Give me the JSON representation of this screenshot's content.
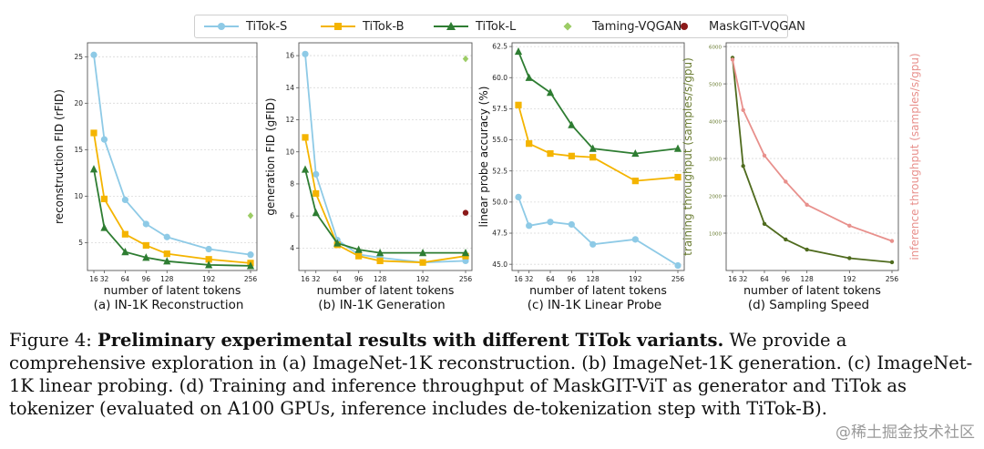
{
  "legend": [
    {
      "name": "TiTok-S",
      "color": "#8ecae6",
      "marker": "circle"
    },
    {
      "name": "TiTok-B",
      "color": "#f4b400",
      "marker": "square"
    },
    {
      "name": "TiTok-L",
      "color": "#2e7d32",
      "marker": "triangle"
    },
    {
      "name": "Taming-VQGAN",
      "color": "#9ccc65",
      "marker": "diamond"
    },
    {
      "name": "MaskGIT-VQGAN",
      "color": "#8b1a1a",
      "marker": "dot"
    }
  ],
  "chart_data": [
    {
      "type": "line",
      "title": "(a) IN-1K Reconstruction",
      "xlabel": "number of latent tokens",
      "ylabel": "reconstruction FID (rFID)",
      "x": [
        16,
        32,
        64,
        96,
        128,
        192,
        256
      ],
      "xticks": [
        "16",
        "32",
        "64",
        "96",
        "128",
        "192",
        "256"
      ],
      "ylim": [
        2,
        26.5
      ],
      "yticks": [
        5,
        10,
        15,
        20,
        25
      ],
      "series": [
        {
          "name": "TiTok-S",
          "values": [
            25.2,
            16.1,
            9.6,
            7.0,
            5.6,
            4.3,
            3.7
          ]
        },
        {
          "name": "TiTok-B",
          "values": [
            16.8,
            9.7,
            5.9,
            4.7,
            3.8,
            3.2,
            2.8
          ]
        },
        {
          "name": "TiTok-L",
          "values": [
            12.9,
            6.6,
            4.0,
            3.4,
            3.0,
            2.6,
            2.5
          ]
        }
      ],
      "points": [
        {
          "name": "Taming-VQGAN",
          "x": 256,
          "y": 7.9
        }
      ]
    },
    {
      "type": "line",
      "title": "(b) IN-1K Generation",
      "xlabel": "number of latent tokens",
      "ylabel": "generation FID (gFID)",
      "x": [
        16,
        32,
        64,
        96,
        128,
        192,
        256
      ],
      "xticks": [
        "16",
        "32",
        "64",
        "96",
        "128",
        "192",
        "256"
      ],
      "ylim": [
        2.6,
        16.8
      ],
      "yticks": [
        4,
        6,
        8,
        10,
        12,
        14,
        16
      ],
      "series": [
        {
          "name": "TiTok-S",
          "values": [
            16.1,
            8.6,
            4.5,
            3.6,
            3.4,
            3.1,
            3.2
          ]
        },
        {
          "name": "TiTok-B",
          "values": [
            10.9,
            7.4,
            4.2,
            3.5,
            3.2,
            3.1,
            3.5
          ]
        },
        {
          "name": "TiTok-L",
          "values": [
            8.9,
            6.2,
            4.3,
            3.9,
            3.7,
            3.7,
            3.7
          ]
        }
      ],
      "points": [
        {
          "name": "Taming-VQGAN",
          "x": 256,
          "y": 15.8
        },
        {
          "name": "MaskGIT-VQGAN",
          "x": 256,
          "y": 6.2
        }
      ]
    },
    {
      "type": "line",
      "title": "(c) IN-1K Linear Probe",
      "xlabel": "number of latent tokens",
      "ylabel": "linear probe accuracy (%)",
      "x": [
        16,
        32,
        64,
        96,
        128,
        192,
        256
      ],
      "xticks": [
        "16",
        "32",
        "64",
        "96",
        "128",
        "192",
        "256"
      ],
      "ylim": [
        44.5,
        62.8
      ],
      "yticks": [
        45.0,
        47.5,
        50.0,
        52.5,
        55.0,
        57.5,
        60.0,
        62.5
      ],
      "ytick_labels": [
        "45.0",
        "47.5",
        "50.0",
        "52.5",
        "55.0",
        "57.5",
        "60.0",
        "62.5"
      ],
      "series": [
        {
          "name": "TiTok-S",
          "values": [
            50.4,
            48.1,
            48.4,
            48.2,
            46.6,
            47.0,
            44.9
          ]
        },
        {
          "name": "TiTok-B",
          "values": [
            57.8,
            54.7,
            53.9,
            53.7,
            53.6,
            51.7,
            52.0
          ]
        },
        {
          "name": "TiTok-L",
          "values": [
            62.1,
            60.0,
            58.8,
            56.2,
            54.3,
            53.9,
            54.3
          ]
        }
      ],
      "points": []
    },
    {
      "type": "line",
      "title": "(d) Sampling Speed",
      "xlabel": "number of latent tokens",
      "ylabel": "training throughput (samples/s/gpu)",
      "y2label": "inference throughput (samples/s/gpu)",
      "x": [
        16,
        32,
        64,
        96,
        128,
        192,
        256
      ],
      "xticks": [
        "16",
        "32",
        "64",
        "96",
        "128",
        "192",
        "256"
      ],
      "ylim": [
        0,
        6100
      ],
      "yticks": [
        1000,
        2000,
        3000,
        4000,
        5000,
        6000
      ],
      "series": [
        {
          "name": "training throughput",
          "color": "#4f6b1e",
          "values": [
            5700,
            2800,
            1250,
            830,
            560,
            330,
            220
          ]
        },
        {
          "name": "inference throughput",
          "color": "#e8908c",
          "values": [
            5650,
            4300,
            3080,
            2380,
            1760,
            1200,
            790
          ]
        }
      ],
      "points": []
    }
  ],
  "caption": {
    "prefix": "Figure 4: ",
    "bold": "Preliminary experimental results with different TiTok variants.",
    "body": " We provide a comprehensive exploration in (a) ImageNet-1K reconstruction. (b) ImageNet-1K generation. (c) ImageNet-1K linear probing. (d) Training and inference throughput of MaskGIT-ViT as generator and TiTok as tokenizer (evaluated on A100 GPUs, inference includes de-tokenization step with TiTok-B)."
  },
  "watermark": "@稀土掘金技术社区"
}
